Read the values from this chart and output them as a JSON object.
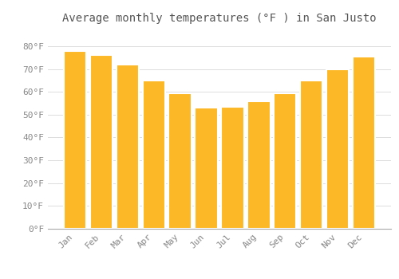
{
  "title": "Average monthly temperatures (°F ) in San Justo",
  "months": [
    "Jan",
    "Feb",
    "Mar",
    "Apr",
    "May",
    "Jun",
    "Jul",
    "Aug",
    "Sep",
    "Oct",
    "Nov",
    "Dec"
  ],
  "values": [
    78,
    76,
    72,
    65,
    59.5,
    53,
    53.5,
    56,
    59.5,
    65,
    70,
    75.5
  ],
  "bar_color": "#FDB827",
  "bar_edge_color": "#FFFFFF",
  "background_color": "#FFFFFF",
  "grid_color": "#DDDDDD",
  "text_color": "#888888",
  "title_color": "#555555",
  "ylim": [
    0,
    88
  ],
  "yticks": [
    0,
    10,
    20,
    30,
    40,
    50,
    60,
    70,
    80
  ],
  "ytick_labels": [
    "0°F",
    "10°F",
    "20°F",
    "30°F",
    "40°F",
    "50°F",
    "60°F",
    "70°F",
    "80°F"
  ],
  "title_fontsize": 10,
  "tick_fontsize": 8
}
